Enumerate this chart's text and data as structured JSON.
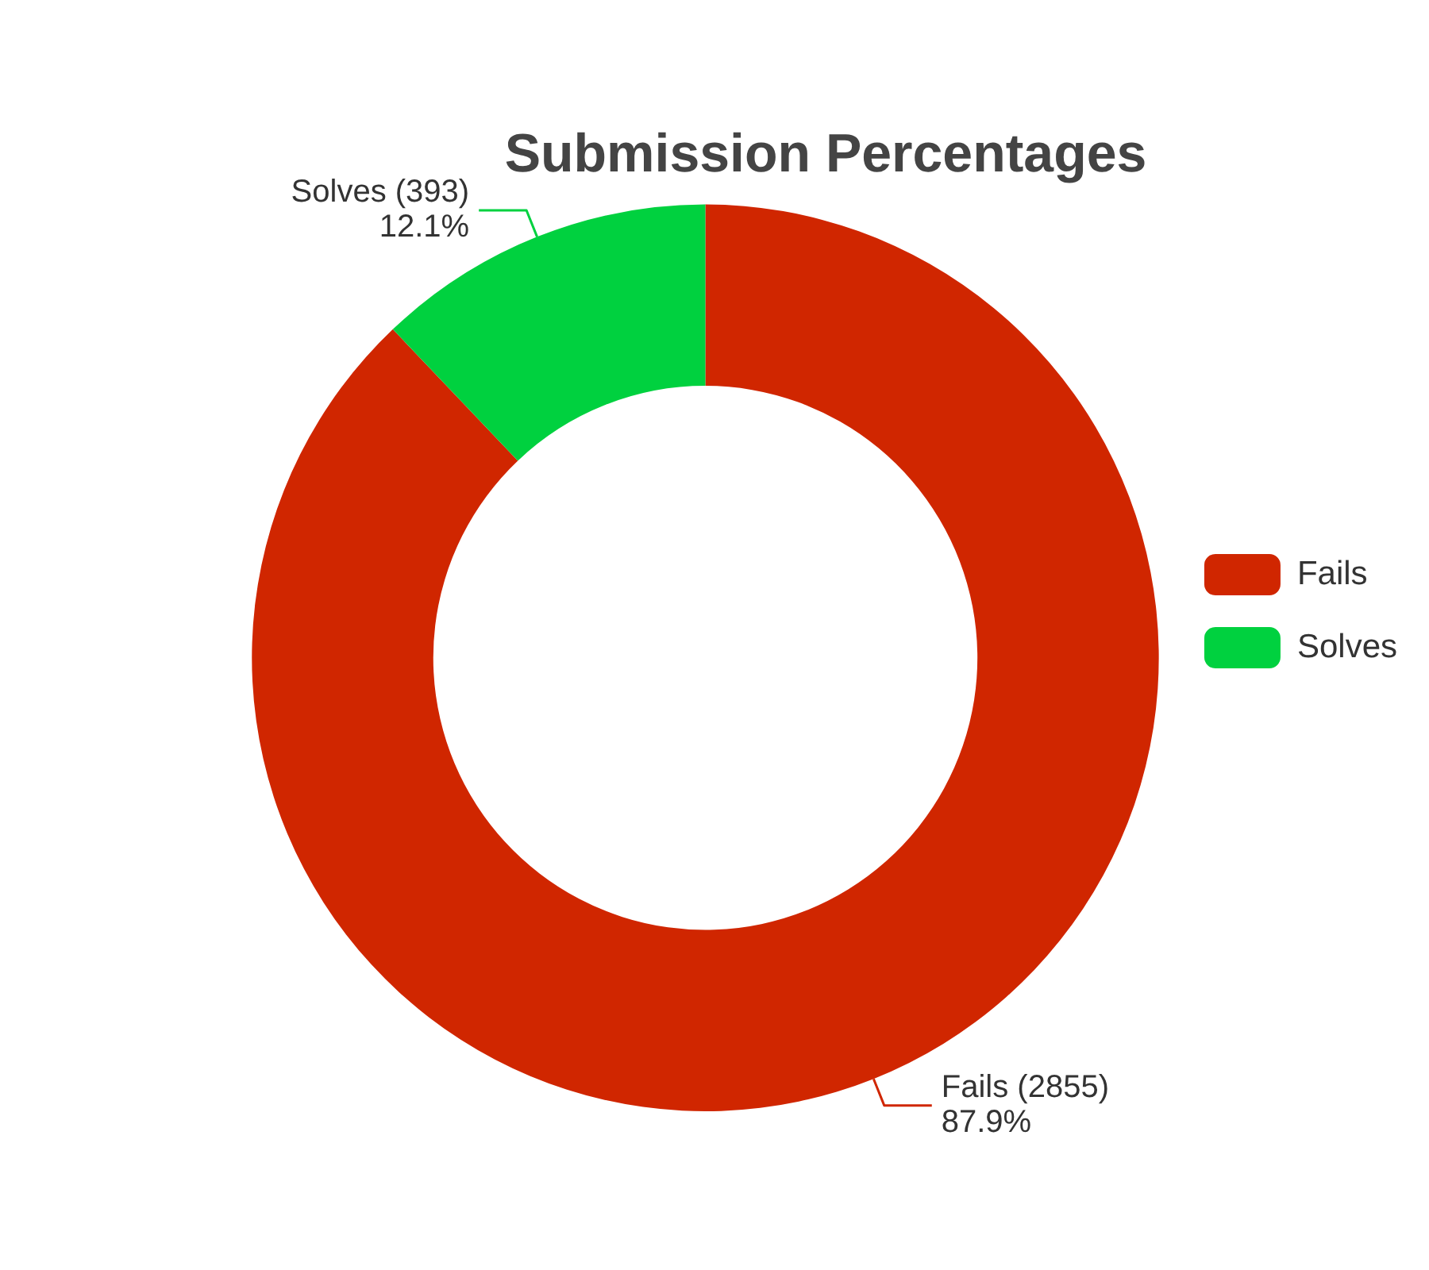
{
  "chart_data": {
    "type": "donut",
    "title": "Submission Percentages",
    "categories": [
      "Fails",
      "Solves"
    ],
    "values": [
      2855,
      393
    ],
    "colors": [
      "#d02600",
      "#00d13f"
    ],
    "value_labels": [
      "Fails (2855)\n87.9%",
      "Solves (393)\n12.1%"
    ],
    "legend": "right"
  }
}
